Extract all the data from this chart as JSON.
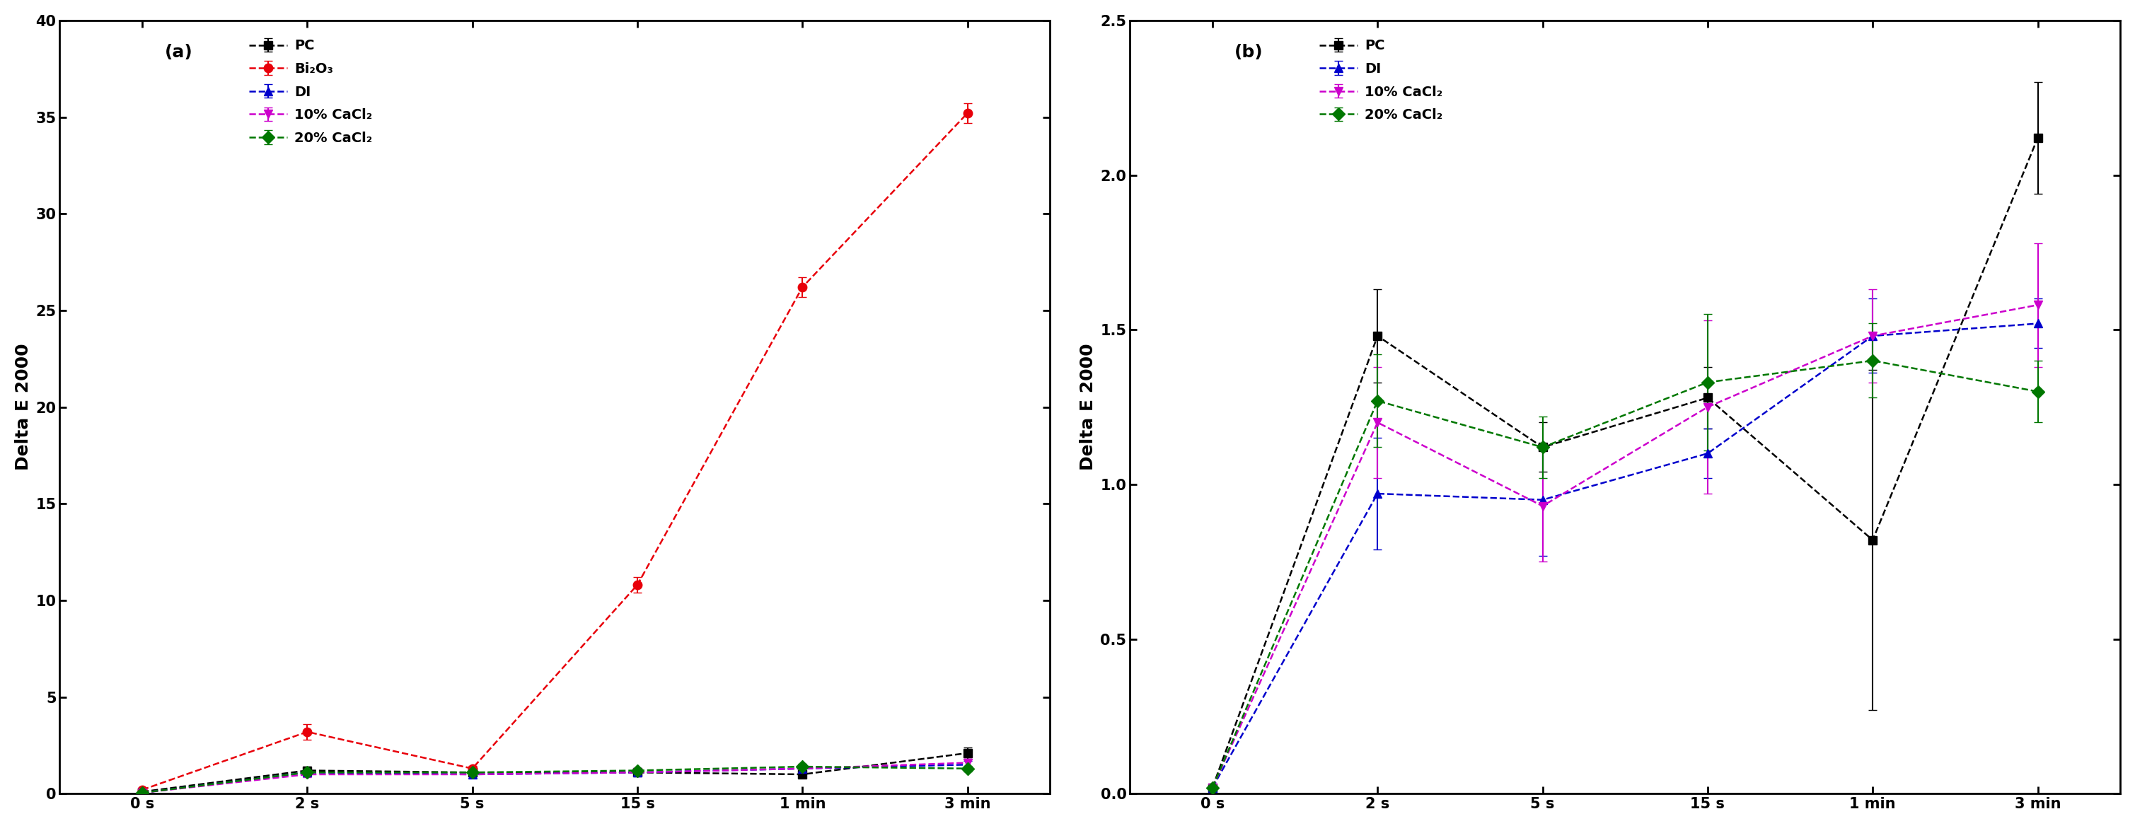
{
  "x_labels": [
    "0 s",
    "2 s",
    "5 s",
    "15 s",
    "1 min",
    "3 min"
  ],
  "x_positions": [
    0,
    1,
    2,
    3,
    4,
    5
  ],
  "panel_a": {
    "title": "(a)",
    "ylabel": "Delta E 2000",
    "ylim": [
      0,
      40
    ],
    "yticks": [
      0,
      5,
      10,
      15,
      20,
      25,
      30,
      35,
      40
    ],
    "series": [
      {
        "label": "PC",
        "color": "#000000",
        "marker": "s",
        "values": [
          0.1,
          1.2,
          1.1,
          1.1,
          1.0,
          2.1
        ],
        "yerr": [
          0.05,
          0.2,
          0.15,
          0.1,
          0.15,
          0.3
        ]
      },
      {
        "label": "Bi₂O₃",
        "color": "#e8000a",
        "marker": "o",
        "values": [
          0.2,
          3.2,
          1.3,
          10.8,
          26.2,
          35.2
        ],
        "yerr": [
          0.05,
          0.4,
          0.15,
          0.4,
          0.5,
          0.5
        ]
      },
      {
        "label": "DI",
        "color": "#0000cc",
        "marker": "^",
        "values": [
          0.05,
          1.1,
          1.0,
          1.1,
          1.3,
          1.5
        ],
        "yerr": [
          0.02,
          0.2,
          0.1,
          0.1,
          0.15,
          0.2
        ]
      },
      {
        "label": "10% CaCl₂",
        "color": "#cc00cc",
        "marker": "v",
        "values": [
          0.05,
          1.0,
          1.0,
          1.1,
          1.3,
          1.6
        ],
        "yerr": [
          0.02,
          0.15,
          0.1,
          0.15,
          0.15,
          0.2
        ]
      },
      {
        "label": "20% CaCl₂",
        "color": "#007700",
        "marker": "D",
        "values": [
          0.05,
          1.1,
          1.1,
          1.2,
          1.4,
          1.3
        ],
        "yerr": [
          0.02,
          0.15,
          0.1,
          0.1,
          0.15,
          0.15
        ]
      }
    ]
  },
  "panel_b": {
    "title": "(b)",
    "ylabel": "Delta E 2000",
    "ylim": [
      0.0,
      2.5
    ],
    "yticks": [
      0.0,
      0.5,
      1.0,
      1.5,
      2.0,
      2.5
    ],
    "series": [
      {
        "label": "PC",
        "color": "#000000",
        "marker": "s",
        "values": [
          0.02,
          1.48,
          1.12,
          1.28,
          0.82,
          2.12
        ],
        "yerr": [
          0.01,
          0.15,
          0.08,
          0.1,
          0.55,
          0.18
        ]
      },
      {
        "label": "DI",
        "color": "#0000cc",
        "marker": "^",
        "values": [
          0.02,
          0.97,
          0.95,
          1.1,
          1.48,
          1.52
        ],
        "yerr": [
          0.01,
          0.18,
          0.18,
          0.08,
          0.12,
          0.08
        ]
      },
      {
        "label": "10% CaCl₂",
        "color": "#cc00cc",
        "marker": "v",
        "values": [
          0.02,
          1.2,
          0.93,
          1.25,
          1.48,
          1.58
        ],
        "yerr": [
          0.01,
          0.18,
          0.18,
          0.28,
          0.15,
          0.2
        ]
      },
      {
        "label": "20% CaCl₂",
        "color": "#007700",
        "marker": "D",
        "values": [
          0.02,
          1.27,
          1.12,
          1.33,
          1.4,
          1.3
        ],
        "yerr": [
          0.01,
          0.15,
          0.1,
          0.22,
          0.12,
          0.1
        ]
      }
    ]
  },
  "figure_bg": "#ffffff",
  "legend_fontsize": 14,
  "axis_label_fontsize": 18,
  "tick_fontsize": 15,
  "title_fontsize": 18,
  "linewidth": 1.8,
  "markersize": 9,
  "capsize": 4,
  "elinewidth": 1.5
}
